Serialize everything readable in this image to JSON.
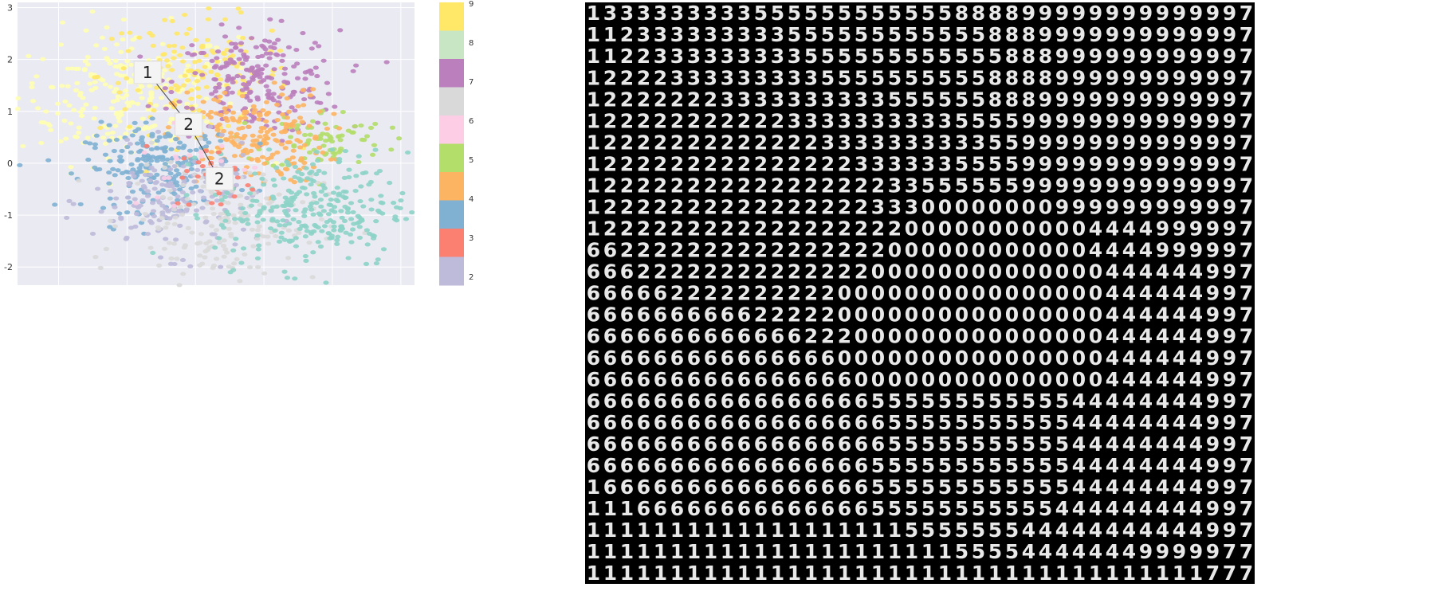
{
  "chart_data": [
    {
      "type": "scatter",
      "ylim": [
        -2.35,
        3.1
      ],
      "xlim": [
        -2.6,
        3.2
      ],
      "yticks": [
        "3",
        "2",
        "1",
        "0",
        "-1",
        "-2"
      ],
      "grid": true,
      "colormap_labels": [
        "9",
        "8",
        "7",
        "6",
        "5",
        "4",
        "3",
        "2"
      ],
      "colormap_colors": [
        "#ffe867",
        "#c8e6c3",
        "#bb7fbd",
        "#d9d9d9",
        "#fccde5",
        "#b3de69",
        "#fdb462",
        "#80b1d3",
        "#fb8072",
        "#bebada"
      ],
      "clusters": [
        {
          "color": "#ffffb3",
          "cx": -1.0,
          "cy": 1.3,
          "sx": 0.8,
          "sy": 0.65,
          "n": 260
        },
        {
          "color": "#ffe867",
          "cx": 0.0,
          "cy": 1.7,
          "sx": 0.7,
          "sy": 0.55,
          "n": 150
        },
        {
          "color": "#bb7fbd",
          "cx": 0.9,
          "cy": 1.55,
          "sx": 0.6,
          "sy": 0.5,
          "n": 230
        },
        {
          "color": "#b3de69",
          "cx": 1.9,
          "cy": 0.45,
          "sx": 0.45,
          "sy": 0.3,
          "n": 80
        },
        {
          "color": "#fdb462",
          "cx": 0.8,
          "cy": 0.5,
          "sx": 0.55,
          "sy": 0.45,
          "n": 210
        },
        {
          "color": "#80b1d3",
          "cx": -0.5,
          "cy": -0.1,
          "sx": 0.55,
          "sy": 0.4,
          "n": 230
        },
        {
          "color": "#bebada",
          "cx": -0.3,
          "cy": -0.75,
          "sx": 0.6,
          "sy": 0.5,
          "n": 160
        },
        {
          "color": "#d9d9d9",
          "cx": 0.4,
          "cy": -1.1,
          "sx": 0.7,
          "sy": 0.6,
          "n": 180
        },
        {
          "color": "#8dd3c7",
          "cx": 1.7,
          "cy": -0.9,
          "sx": 0.7,
          "sy": 0.55,
          "n": 290
        },
        {
          "color": "#fb8072",
          "cx": 0.3,
          "cy": -0.3,
          "sx": 0.3,
          "sy": 0.3,
          "n": 30
        },
        {
          "color": "#fccde5",
          "cx": 0.0,
          "cy": 0.0,
          "sx": 0.5,
          "sy": 0.5,
          "n": 20
        }
      ],
      "annotations": [
        {
          "label": "1",
          "x": -0.7,
          "y": 1.75
        },
        {
          "label": "2",
          "x": -0.1,
          "y": 0.75
        },
        {
          "label": "2",
          "x": 0.35,
          "y": -0.3
        }
      ]
    },
    {
      "type": "table",
      "rows": [
        "1333333333555555555555888899999999999997",
        "1123333333335555555555558889999999999997",
        "1122333333333555555555555888999999999997",
        "1222233333333355555555558888999999999997",
        "1222222233333333335555558889999999999997",
        "1222222222223333333333555599999999999997",
        "1222222222222233333333335599999999999997",
        "1222222222222222333333555599999999999997",
        "1222222222222222223355555599999999999997",
        "1222222222222222233300000000999999999997",
        "1222222222222222222000000000004444999997",
        "6622222222222222220000000000004444999997",
        "6662222222222222200000000000000444444997",
        "6666622222222220000000000000000444444997",
        "6666666666222220000000000000000444444997",
        "6666666666666222000000000000000444444997",
        "6666666666666660000000000000000444444997",
        "6666666666666666000000000000000444444997",
        "6666666666666666655555555555544444444997",
        "6666666666666666665555555555544444444997",
        "6666666666666666665555555555544444444997",
        "6666666666666666655555555555544444444997",
        "1666666666666666655555555555544444444997",
        "1116666666666666655555555555444444444997",
        "1111111111111111111555555544444444444997",
        "1111111111111111111111555544444449999977",
        "1111111111111111111111111111111111111777"
      ]
    }
  ]
}
